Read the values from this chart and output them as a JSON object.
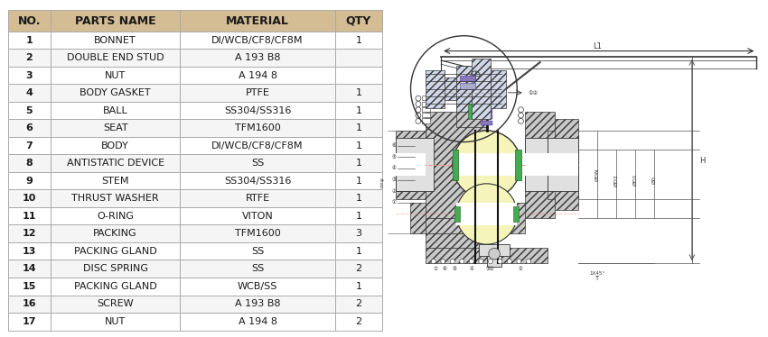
{
  "header": [
    "NO.",
    "PARTS NAME",
    "MATERIAL",
    "QTY"
  ],
  "rows": [
    [
      "1",
      "BONNET",
      "DI/WCB/CF8/CF8M",
      "1"
    ],
    [
      "2",
      "DOUBLE END STUD",
      "A 193 B8",
      ""
    ],
    [
      "3",
      "NUT",
      "A 194 8",
      ""
    ],
    [
      "4",
      "BODY GASKET",
      "PTFE",
      "1"
    ],
    [
      "5",
      "BALL",
      "SS304/SS316",
      "1"
    ],
    [
      "6",
      "SEAT",
      "TFM1600",
      "1"
    ],
    [
      "7",
      "BODY",
      "DI/WCB/CF8/CF8M",
      "1"
    ],
    [
      "8",
      "ANTISTATIC DEVICE",
      "SS",
      "1"
    ],
    [
      "9",
      "STEM",
      "SS304/SS316",
      "1"
    ],
    [
      "10",
      "THRUST WASHER",
      "RTFE",
      "1"
    ],
    [
      "11",
      "O-RING",
      "VITON",
      "1"
    ],
    [
      "12",
      "PACKING",
      "TFM1600",
      "3"
    ],
    [
      "13",
      "PACKING GLAND",
      "SS",
      "1"
    ],
    [
      "14",
      "DISC SPRING",
      "SS",
      "2"
    ],
    [
      "15",
      "PACKING GLAND",
      "WCB/SS",
      "1"
    ],
    [
      "16",
      "SCREW",
      "A 193 B8",
      "2"
    ],
    [
      "17",
      "NUT",
      "A 194 8",
      "2"
    ]
  ],
  "header_bg": "#D4BC94",
  "row_bg_odd": "#FFFFFF",
  "row_bg_even": "#F5F5F5",
  "header_text_color": "#1A1A1A",
  "row_text_color": "#1A1A1A",
  "border_color": "#AAAAAA",
  "fig_width": 8.5,
  "fig_height": 3.74,
  "font_size_header": 9,
  "font_size_row": 8,
  "hatch_color": "#7090B0",
  "hatch_pattern": "////",
  "line_color": "#333333",
  "dim_line_color": "#555555",
  "ball_color": "#F5F5BB",
  "seat_color": "#44AA55",
  "stem_purple": "#8877BB",
  "center_line_color": "#FF8888",
  "bg_color": "#FFFFFF"
}
